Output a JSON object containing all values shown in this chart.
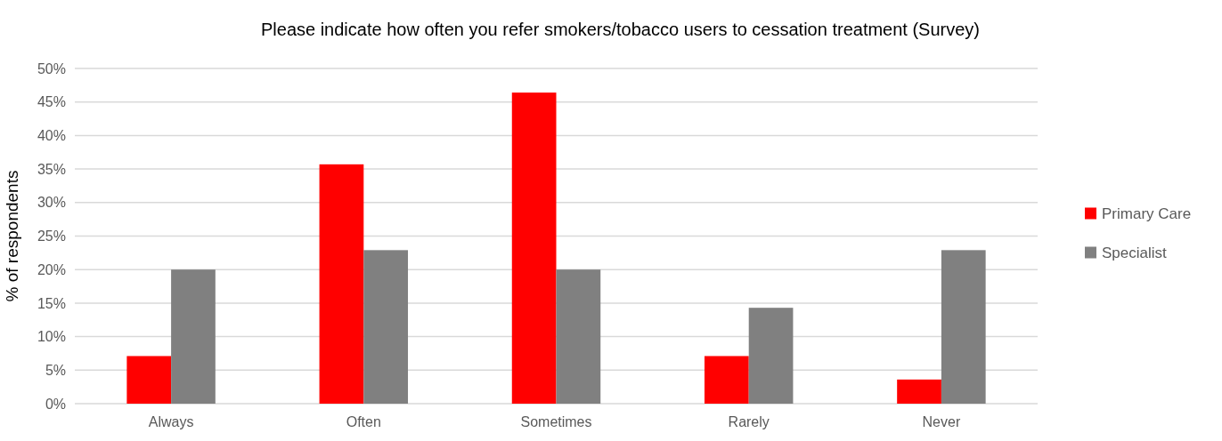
{
  "chart_data": {
    "type": "bar",
    "title": "Please indicate how often you refer smokers/tobacco users to cessation treatment (Survey)",
    "ylabel": "% of respondents",
    "categories": [
      "Always",
      "Often",
      "Sometimes",
      "Rarely",
      "Never"
    ],
    "series": [
      {
        "name": "Primary Care",
        "color": "#ff0000",
        "values": [
          7.1,
          35.7,
          46.4,
          7.1,
          3.6
        ]
      },
      {
        "name": "Specialist",
        "color": "#808080",
        "values": [
          20,
          22.9,
          20,
          14.3,
          22.9
        ]
      }
    ],
    "ylim": [
      0,
      50
    ],
    "yticks": [
      {
        "value": 0,
        "label": "0%"
      },
      {
        "value": 5,
        "label": "5%"
      },
      {
        "value": 10,
        "label": "10%"
      },
      {
        "value": 15,
        "label": "15%"
      },
      {
        "value": 20,
        "label": "20%"
      },
      {
        "value": 25,
        "label": "25%"
      },
      {
        "value": 30,
        "label": "30%"
      },
      {
        "value": 35,
        "label": "35%"
      },
      {
        "value": 40,
        "label": "40%"
      },
      {
        "value": 45,
        "label": "45%"
      },
      {
        "value": 50,
        "label": "50%"
      }
    ],
    "grid": "y",
    "legend": "right"
  }
}
